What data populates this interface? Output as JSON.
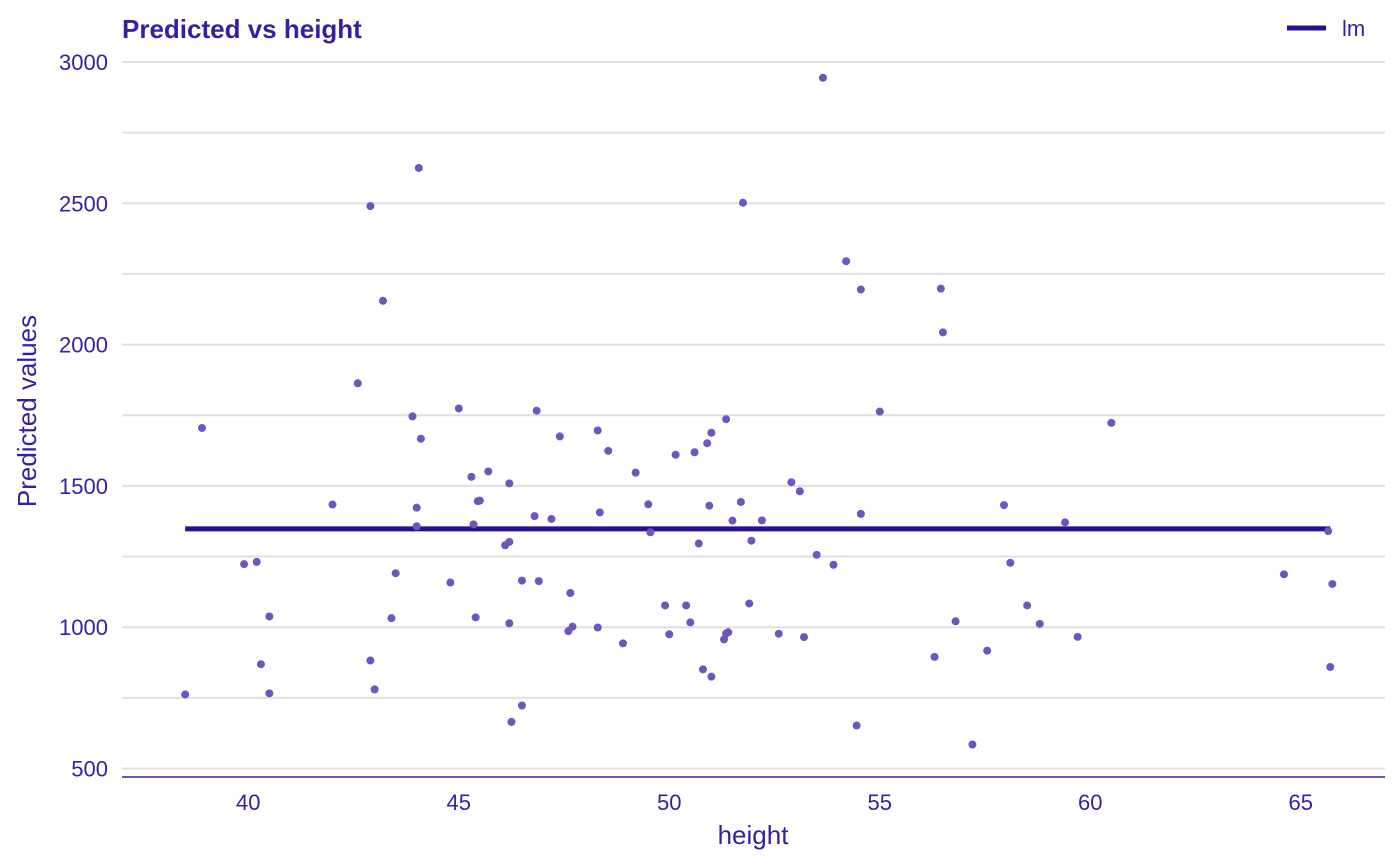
{
  "colors": {
    "text": "#371ea3",
    "line": "#2a0f96",
    "points": "#6f55bd",
    "grid": "#e0e0e0",
    "baseline": "#371ea3"
  },
  "chart_data": {
    "type": "scatter",
    "title": "Predicted vs height",
    "xlabel": "height",
    "ylabel": "Predicted values",
    "xlim": [
      37,
      67
    ],
    "ylim": [
      470,
      3060
    ],
    "x_ticks": [
      40,
      45,
      50,
      55,
      60,
      65
    ],
    "y_ticks": [
      500,
      1000,
      1500,
      2000,
      2500,
      3000
    ],
    "grid": "horizontal",
    "legend": {
      "position": "top-right",
      "entries": [
        "lm"
      ]
    },
    "series": [
      {
        "name": "lm",
        "kind": "line",
        "x": [
          38.5,
          65.7
        ],
        "y": [
          1348,
          1348
        ]
      },
      {
        "kind": "points",
        "x": [
          38.5,
          38.9,
          39.9,
          40.2,
          40.3,
          40.5,
          40.5,
          42.0,
          42.6,
          42.9,
          42.9,
          43.0,
          43.2,
          43.4,
          43.5,
          43.9,
          44.0,
          44.0,
          44.05,
          44.1,
          44.8,
          45.0,
          45.3,
          45.35,
          45.4,
          45.45,
          45.5,
          45.7,
          46.1,
          46.2,
          46.2,
          46.25,
          46.2,
          46.5,
          46.5,
          46.8,
          46.85,
          46.9,
          47.2,
          47.4,
          47.6,
          47.65,
          47.7,
          48.3,
          48.35,
          48.3,
          48.55,
          48.9,
          49.2,
          49.5,
          49.55,
          49.9,
          50.0,
          50.15,
          50.4,
          50.5,
          50.6,
          50.7,
          50.8,
          50.9,
          50.95,
          51.0,
          51.0,
          51.3,
          51.35,
          51.4,
          51.35,
          51.5,
          51.75,
          51.7,
          51.9,
          51.95,
          52.2,
          52.6,
          52.9,
          53.1,
          53.2,
          53.5,
          53.65,
          53.9,
          54.2,
          54.45,
          54.55,
          54.55,
          55.0,
          56.3,
          56.45,
          56.5,
          56.8,
          57.2,
          57.55,
          57.95,
          58.1,
          58.5,
          58.8,
          59.4,
          59.7,
          60.5,
          64.6,
          65.65,
          65.7,
          65.75
        ],
        "y": [
          762,
          1705,
          1223,
          1231,
          869,
          766,
          1038,
          1434,
          1863,
          2490,
          882,
          780,
          2155,
          1032,
          1191,
          1746,
          1423,
          1357,
          2625,
          1667,
          1158,
          1774,
          1532,
          1364,
          1035,
          1446,
          1448,
          1551,
          1290,
          1509,
          1302,
          665,
          1014,
          1165,
          723,
          1393,
          1766,
          1163,
          1383,
          1675,
          986,
          1121,
          1002,
          1696,
          1406,
          999,
          1624,
          943,
          1547,
          1435,
          1336,
          1077,
          975,
          1610,
          1077,
          1017,
          1619,
          1296,
          851,
          1651,
          1430,
          825,
          1688,
          957,
          1736,
          982,
          978,
          1377,
          2502,
          1443,
          1084,
          1306,
          1378,
          977,
          1513,
          1481,
          965,
          1256,
          2944,
          1221,
          2295,
          652,
          2195,
          1401,
          1763,
          895,
          2198,
          2043,
          1021,
          585,
          917,
          1432,
          1228,
          1077,
          1012,
          1371,
          966,
          1723,
          1187,
          1340,
          859,
          1153
        ]
      }
    ]
  }
}
